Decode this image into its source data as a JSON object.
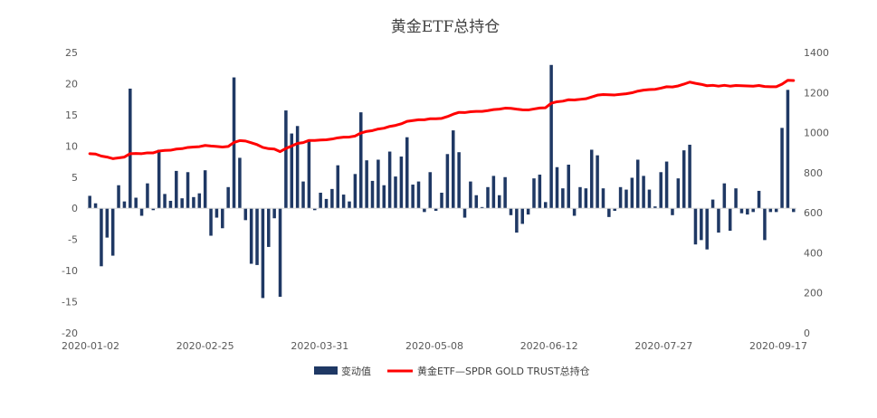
{
  "chart_data": {
    "type": "bar+line",
    "title": "黄金ETF总持仓",
    "x_tick_labels": [
      "2020-01-02",
      "2020-02-25",
      "2020-03-31",
      "2020-05-08",
      "2020-06-12",
      "2020-07-27",
      "2020-09-17"
    ],
    "y_left": {
      "ticks": [
        25,
        20,
        15,
        10,
        5,
        0,
        -5,
        -10,
        -15,
        -20
      ],
      "ylim": [
        -20,
        25
      ]
    },
    "y_right": {
      "ticks": [
        1400,
        1200,
        1000,
        800,
        600,
        400,
        200,
        0
      ],
      "ylim": [
        0,
        1400
      ]
    },
    "legend": {
      "position": "bottom",
      "entries": [
        "变动值",
        "黄金ETF—SPDR GOLD TRUST总持仓"
      ]
    },
    "grid": false,
    "colors": {
      "bars": "#1f3864",
      "line": "#ff0000",
      "text": "#595959"
    },
    "series": [
      {
        "name": "变动值",
        "type": "bar",
        "axis": "left",
        "values": [
          2.0,
          0.8,
          -9.3,
          -4.7,
          -7.6,
          3.7,
          1.1,
          19.2,
          1.7,
          -1.2,
          4.0,
          -0.3,
          9.4,
          2.3,
          1.2,
          6.0,
          1.6,
          5.8,
          1.8,
          2.4,
          6.1,
          -4.4,
          -1.5,
          -3.2,
          3.4,
          21.0,
          8.1,
          -1.9,
          -8.9,
          -9.1,
          -14.4,
          -6.2,
          -1.6,
          -14.2,
          15.7,
          12.0,
          13.2,
          4.3,
          10.9,
          -0.3,
          2.5,
          1.5,
          3.1,
          6.9,
          2.2,
          1.1,
          5.5,
          15.4,
          7.7,
          4.4,
          7.8,
          3.7,
          9.1,
          5.1,
          8.3,
          11.4,
          3.8,
          4.3,
          -0.6,
          5.8,
          -0.4,
          2.5,
          8.7,
          12.5,
          9.0,
          -1.5,
          4.3,
          2.1,
          0.2,
          3.4,
          5.2,
          2.1,
          5.0,
          -1.1,
          -3.9,
          -2.5,
          -1.0,
          4.8,
          5.4,
          1.0,
          23.0,
          6.6,
          3.2,
          7.0,
          -1.2,
          3.4,
          3.2,
          9.4,
          8.5,
          3.2,
          -1.4,
          -0.4,
          3.4,
          3.0,
          4.9,
          7.8,
          5.2,
          3.0,
          0.3,
          5.8,
          7.5,
          -1.1,
          4.8,
          9.3,
          10.2,
          -5.8,
          -5.1,
          -6.6,
          1.4,
          -3.9,
          4.0,
          -3.6,
          3.2,
          -0.8,
          -1.0,
          -0.6,
          2.8,
          -5.1,
          -0.6,
          -0.6,
          12.9,
          19.0,
          -0.6
        ]
      },
      {
        "name": "黄金ETF—SPDR GOLD TRUST总持仓",
        "type": "line",
        "axis": "right",
        "values": [
          895,
          893,
          883,
          878,
          870,
          874,
          878,
          895,
          896,
          895,
          899,
          899,
          908,
          911,
          912,
          918,
          920,
          926,
          928,
          930,
          936,
          933,
          931,
          928,
          931,
          951,
          960,
          958,
          949,
          940,
          926,
          920,
          918,
          905,
          921,
          933,
          946,
          950,
          961,
          961,
          963,
          964,
          968,
          974,
          977,
          978,
          983,
          998,
          1006,
          1010,
          1018,
          1022,
          1031,
          1036,
          1044,
          1056,
          1060,
          1064,
          1064,
          1069,
          1069,
          1071,
          1080,
          1092,
          1101,
          1100,
          1104,
          1106,
          1106,
          1110,
          1115,
          1117,
          1122,
          1121,
          1117,
          1114,
          1113,
          1118,
          1123,
          1124,
          1147,
          1154,
          1157,
          1164,
          1163,
          1166,
          1169,
          1178,
          1187,
          1190,
          1189,
          1188,
          1191,
          1194,
          1199,
          1207,
          1212,
          1215,
          1216,
          1222,
          1229,
          1228,
          1233,
          1242,
          1252,
          1246,
          1241,
          1234,
          1236,
          1232,
          1236,
          1232,
          1235,
          1234,
          1233,
          1232,
          1235,
          1230,
          1229,
          1229,
          1242,
          1261,
          1260
        ]
      }
    ]
  }
}
